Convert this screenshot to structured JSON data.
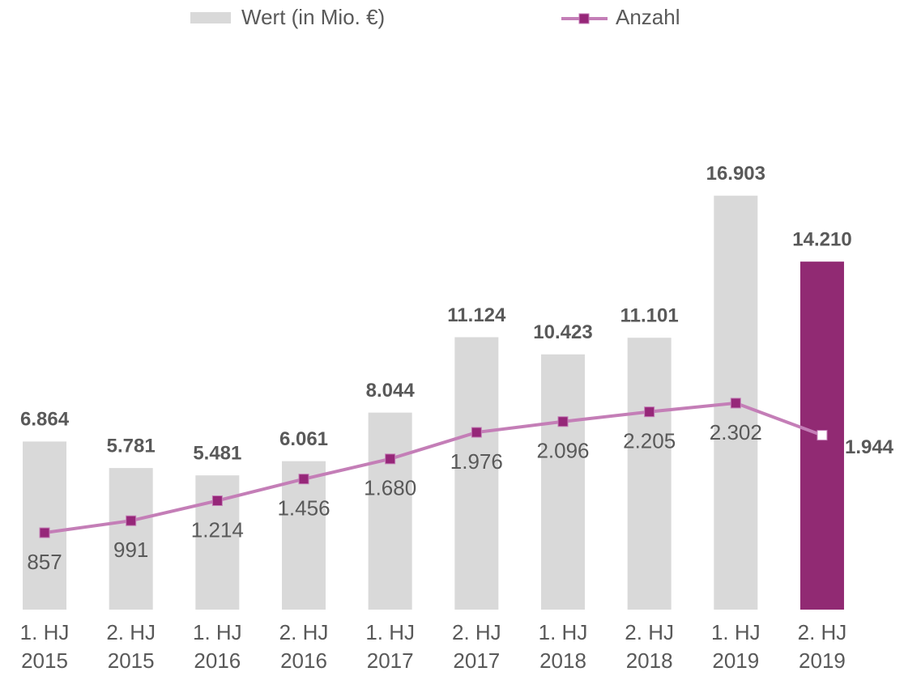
{
  "chart_data": {
    "type": "bar+line",
    "categories": [
      [
        "1. HJ",
        "2015"
      ],
      [
        "2. HJ",
        "2015"
      ],
      [
        "1. HJ",
        "2016"
      ],
      [
        "2. HJ",
        "2016"
      ],
      [
        "1. HJ",
        "2017"
      ],
      [
        "2. HJ",
        "2017"
      ],
      [
        "1. HJ",
        "2018"
      ],
      [
        "2. HJ",
        "2018"
      ],
      [
        "1. HJ",
        "2019"
      ],
      [
        "2. HJ",
        "2019"
      ]
    ],
    "series": [
      {
        "name": "Wert (in Mio. €)",
        "type": "bar",
        "axis": "y",
        "color": "#d9d9d9",
        "colors": [
          "#d9d9d9",
          "#d9d9d9",
          "#d9d9d9",
          "#d9d9d9",
          "#d9d9d9",
          "#d9d9d9",
          "#d9d9d9",
          "#d9d9d9",
          "#d9d9d9",
          "#912a73"
        ],
        "values": [
          6864,
          5781,
          5481,
          6061,
          8044,
          11124,
          10423,
          11101,
          16903,
          14210
        ],
        "value_labels": [
          "6.864",
          "5.781",
          "5.481",
          "6.061",
          "8.044",
          "11.124",
          "10.423",
          "11.101",
          "16.903",
          "14.210"
        ]
      },
      {
        "name": "Anzahl",
        "type": "line",
        "axis": "y2",
        "color": "#c47eb7",
        "marker_colors": [
          "#962779",
          "#962779",
          "#962779",
          "#962779",
          "#962779",
          "#962779",
          "#962779",
          "#962779",
          "#962779",
          "#ffffff"
        ],
        "values": [
          857,
          991,
          1214,
          1456,
          1680,
          1976,
          2096,
          2205,
          2302,
          1944
        ],
        "value_labels": [
          "857",
          "991",
          "1.214",
          "1.456",
          "1.680",
          "1.976",
          "2.096",
          "2.205",
          "2.302",
          "1.944"
        ]
      }
    ],
    "ylim": [
      0,
      20000
    ],
    "y2lim": [
      0,
      5460
    ],
    "legend": "top"
  }
}
